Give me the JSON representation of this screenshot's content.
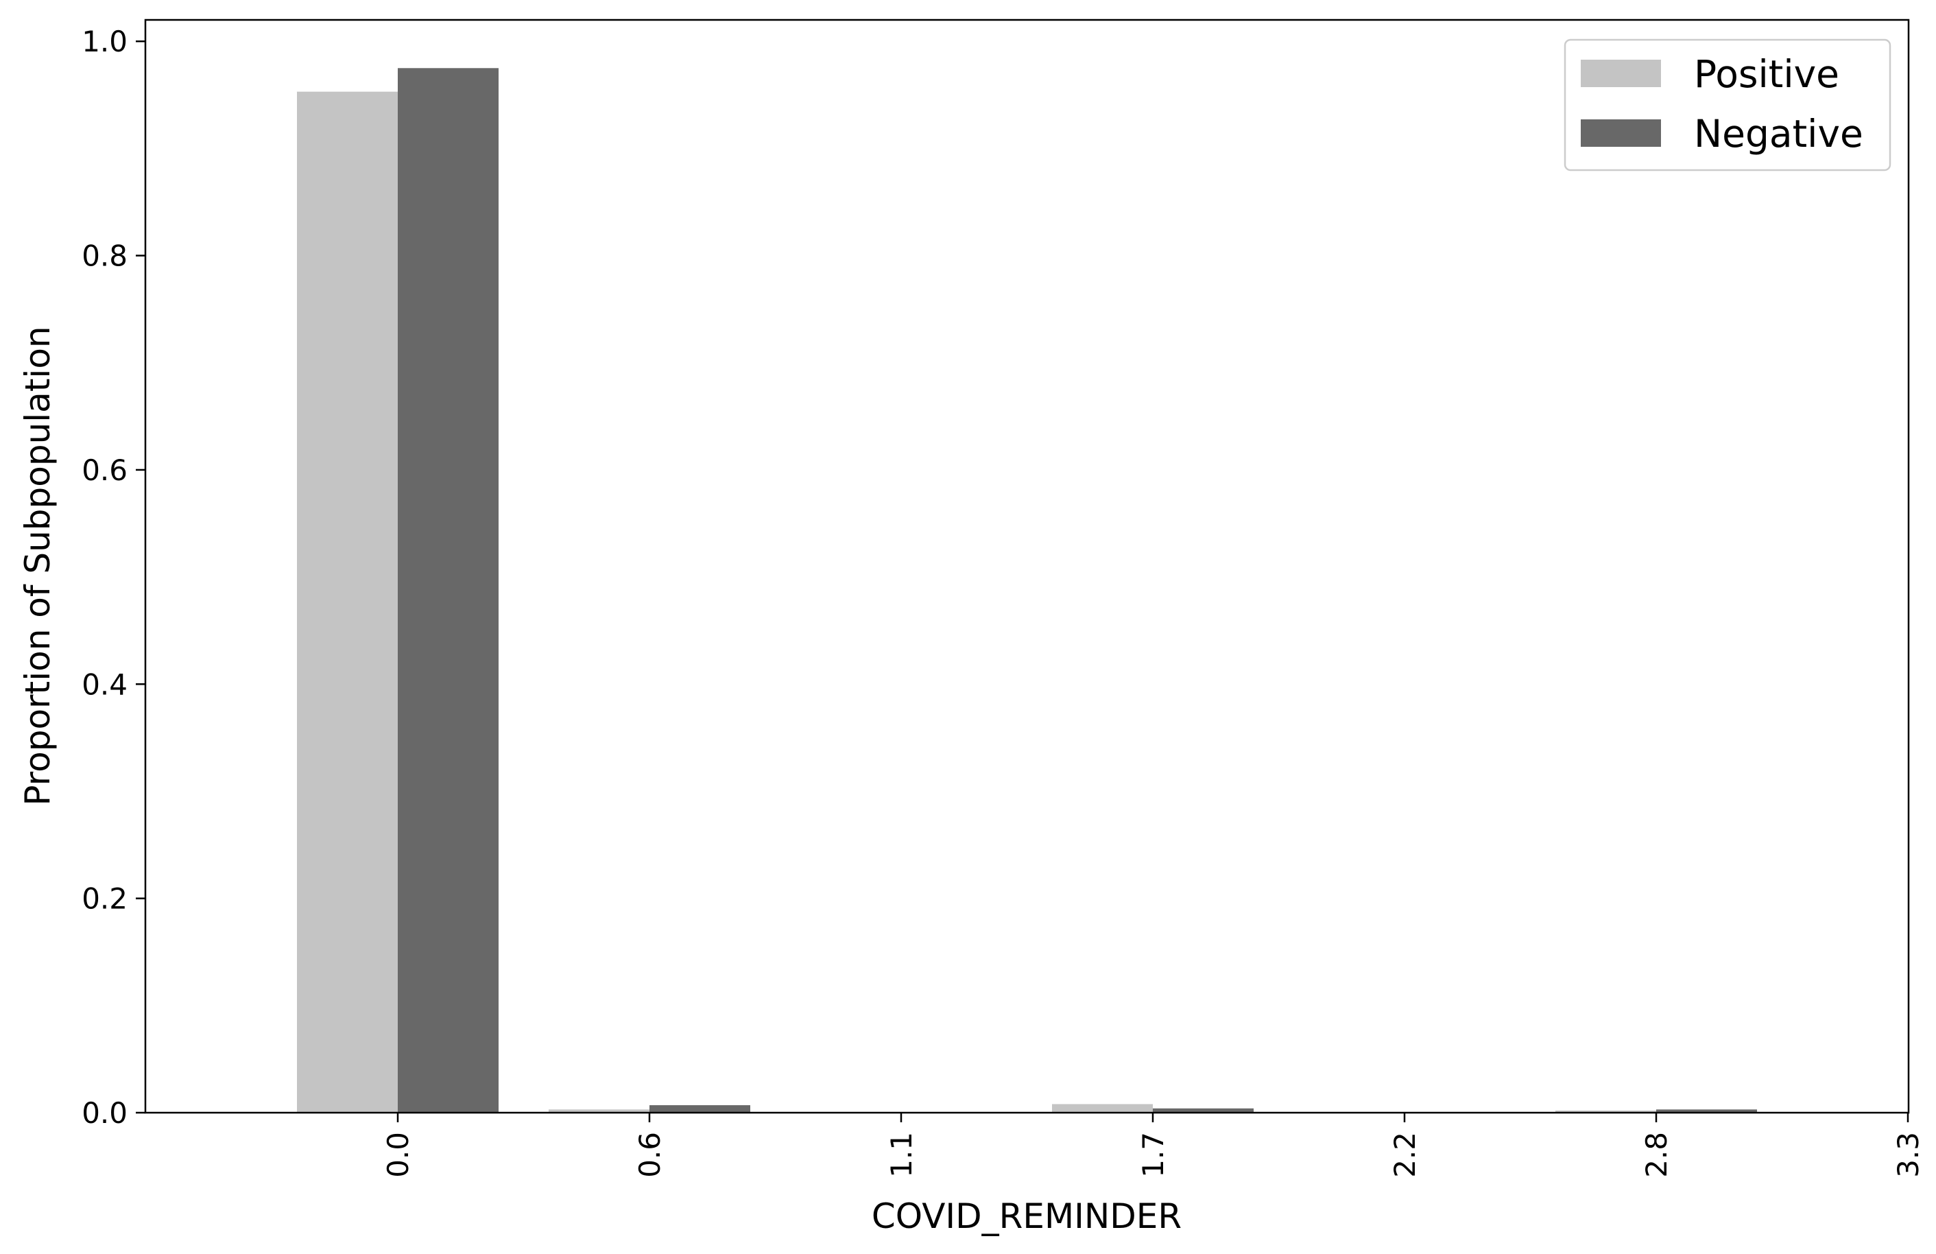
{
  "chart_data": {
    "type": "bar",
    "xlabel": "COVID_REMINDER",
    "ylabel": "Proportion of Subpopulation",
    "categories": [
      "0.0",
      "0.6",
      "1.1",
      "1.7",
      "2.2",
      "2.8",
      "3.3"
    ],
    "ylim": [
      0,
      1.02
    ],
    "yticks": [
      "0.0",
      "0.2",
      "0.4",
      "0.6",
      "0.8",
      "1.0"
    ],
    "grid": false,
    "legend_position": "top-right",
    "series": [
      {
        "name": "Positive",
        "color": "#c4c4c4",
        "values": [
          0.953,
          0.003,
          0.0,
          0.008,
          0.0,
          0.002,
          0.0
        ]
      },
      {
        "name": "Negative",
        "color": "#686868",
        "values": [
          0.975,
          0.007,
          0.0,
          0.004,
          0.0,
          0.003,
          0.0
        ]
      }
    ]
  }
}
